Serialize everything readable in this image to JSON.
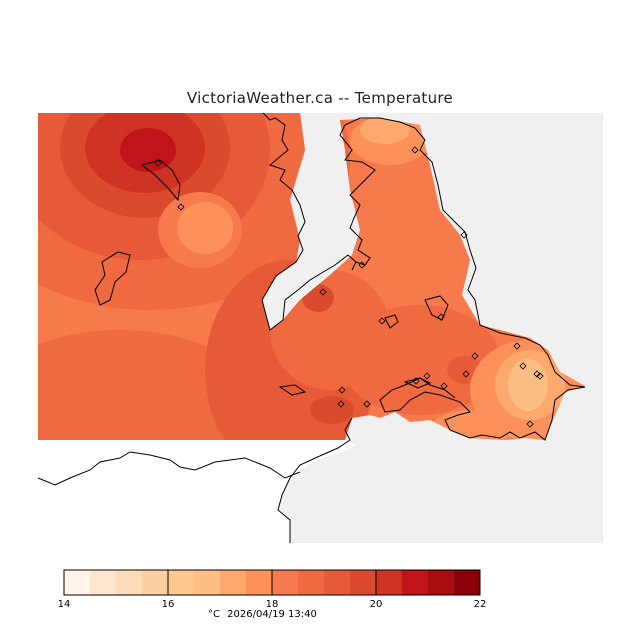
{
  "title": "VictoriaWeather.ca -- Temperature",
  "legend": {
    "min": 14,
    "max": 22,
    "step": 0.5,
    "major_ticks": [
      14,
      16,
      18,
      20,
      22
    ],
    "colors": [
      "#fff5eb",
      "#fee6ce",
      "#fddbb8",
      "#fdd0a2",
      "#fdc78e",
      "#fdbe84",
      "#fda96e",
      "#fc9259",
      "#f67a4b",
      "#ef6a41",
      "#e65a37",
      "#dc4a2e",
      "#cf3324",
      "#c0141a",
      "#a80c10",
      "#8a0006"
    ]
  },
  "footer": {
    "unit": "°C",
    "timestamp": "2026/04/19 13:40"
  },
  "colors": {
    "background_no_data": "#f0f0f0",
    "coast": "#000000"
  }
}
